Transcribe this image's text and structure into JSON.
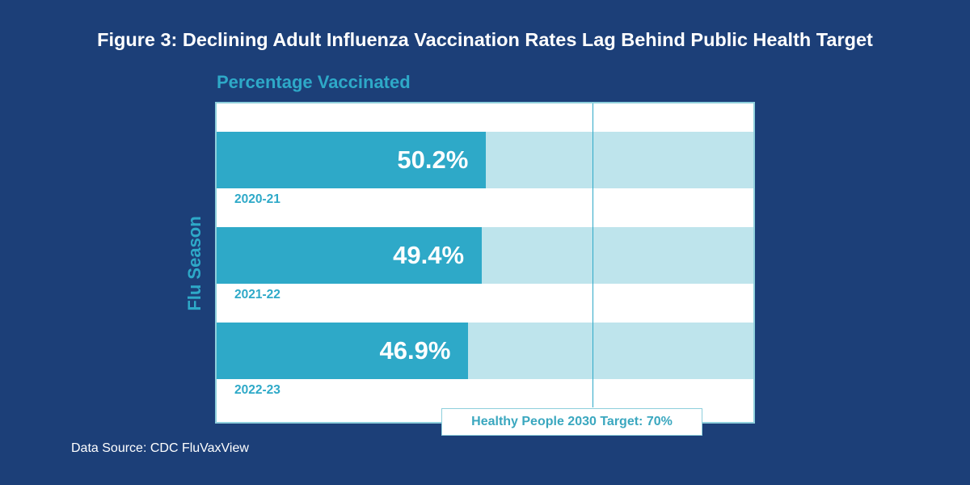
{
  "chart_data": {
    "type": "bar",
    "orientation": "horizontal",
    "title": "Figure 3: Declining Adult Influenza Vaccination Rates Lag Behind Public Health Target",
    "xlabel": "Percentage Vaccinated",
    "ylabel": "Flu Season",
    "categories": [
      "2020-21",
      "2021-22",
      "2022-23"
    ],
    "values": [
      50.2,
      49.4,
      46.9
    ],
    "value_labels": [
      "50.2%",
      "49.4%",
      "46.9%"
    ],
    "xlim": [
      0,
      100
    ],
    "reference_line": {
      "value": 70,
      "label": "Healthy People 2030 Target: 70%"
    },
    "grid": false,
    "colors": {
      "bar": "#2ea9c8",
      "track": "#bee4ec",
      "background": "#1c3f78"
    }
  },
  "source": "Data Source: CDC FluVaxView"
}
